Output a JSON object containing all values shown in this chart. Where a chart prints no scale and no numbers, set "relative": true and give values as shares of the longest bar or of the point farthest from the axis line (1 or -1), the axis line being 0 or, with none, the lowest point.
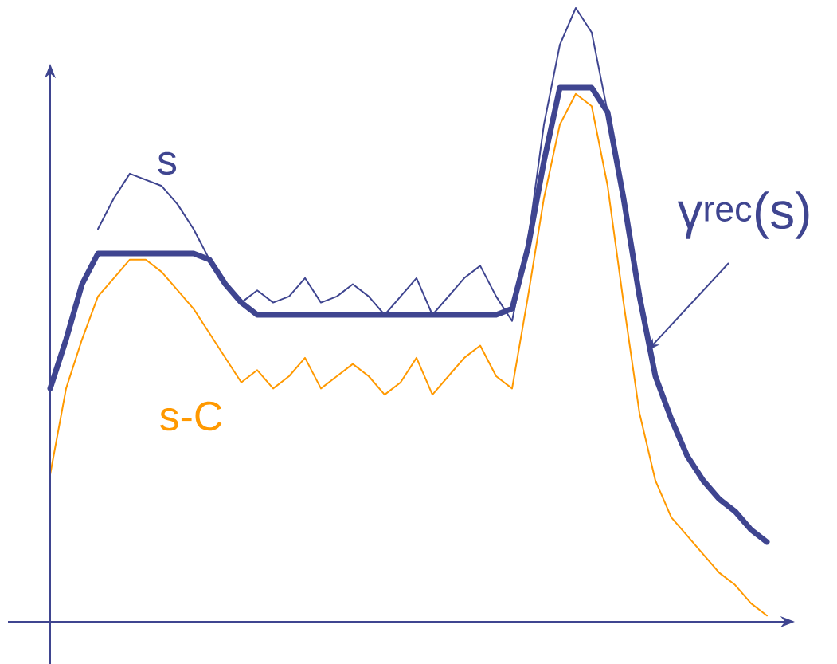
{
  "chart_data": {
    "type": "line",
    "relative": true,
    "categories": [
      null,
      null,
      null,
      null,
      null,
      null,
      null,
      null,
      null,
      null,
      null,
      null,
      null,
      null,
      null,
      null,
      null,
      null,
      null,
      null,
      null,
      null,
      null,
      null,
      null,
      null,
      null,
      null,
      null,
      null,
      null,
      null,
      null,
      null,
      null,
      null,
      null,
      null,
      null,
      null,
      null,
      null,
      null,
      null,
      null,
      null,
      null
    ],
    "series": [
      {
        "name": "s",
        "color": "#3f4590",
        "values": [
          null,
          null,
          null,
          0.64,
          0.69,
          0.73,
          0.72,
          0.71,
          0.68,
          0.64,
          0.59,
          0.55,
          0.52,
          0.54,
          0.52,
          0.53,
          0.56,
          0.52,
          0.53,
          0.55,
          0.53,
          0.5,
          0.53,
          0.56,
          0.5,
          0.53,
          0.56,
          0.58,
          0.53,
          0.49,
          0.62,
          0.81,
          0.94,
          1.0,
          0.96,
          0.83,
          null,
          null,
          null,
          null,
          null,
          null,
          null,
          null,
          null,
          null,
          null
        ]
      },
      {
        "name": "s-C",
        "color": "#ff9900",
        "values": [
          0.24,
          0.38,
          0.46,
          0.53,
          0.56,
          0.59,
          0.59,
          0.57,
          0.54,
          0.51,
          0.47,
          0.43,
          0.39,
          0.41,
          0.38,
          0.4,
          0.43,
          0.38,
          0.4,
          0.42,
          0.4,
          0.37,
          0.39,
          0.43,
          0.37,
          0.4,
          0.43,
          0.45,
          0.4,
          0.38,
          0.53,
          0.69,
          0.81,
          0.86,
          0.84,
          0.71,
          0.52,
          0.34,
          0.23,
          0.17,
          0.14,
          0.11,
          0.08,
          0.06,
          0.03,
          0.01,
          null
        ]
      },
      {
        "name": "γ$^{rec}$(s)",
        "color": "#3f4590",
        "values": [
          0.38,
          0.46,
          0.55,
          0.6,
          0.6,
          0.6,
          0.6,
          0.6,
          0.6,
          0.6,
          0.59,
          0.55,
          0.52,
          0.5,
          0.5,
          0.5,
          0.5,
          0.5,
          0.5,
          0.5,
          0.5,
          0.5,
          0.5,
          0.5,
          0.5,
          0.5,
          0.5,
          0.5,
          0.5,
          0.51,
          0.61,
          0.75,
          0.87,
          0.87,
          0.87,
          0.83,
          0.69,
          0.53,
          0.4,
          0.33,
          0.27,
          0.23,
          0.2,
          0.18,
          0.15,
          0.13,
          null
        ]
      }
    ]
  }
}
